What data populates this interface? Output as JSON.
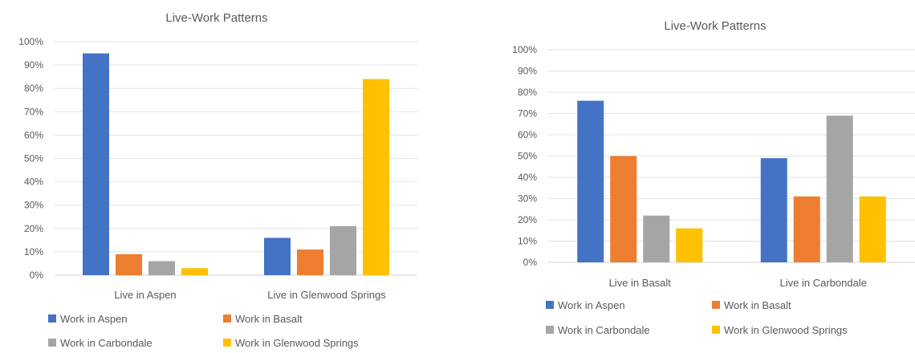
{
  "chart_data": [
    {
      "type": "bar",
      "title": "Live-Work Patterns",
      "categories": [
        "Live in Aspen",
        "Live in Glenwood Springs"
      ],
      "series": [
        {
          "name": "Work in Aspen",
          "color": "#4472C4",
          "values": [
            95,
            16
          ]
        },
        {
          "name": "Work in Basalt",
          "color": "#ED7D31",
          "values": [
            9,
            11
          ]
        },
        {
          "name": "Work in Carbondale",
          "color": "#A5A5A5",
          "values": [
            6,
            21
          ]
        },
        {
          "name": "Work in Glenwood Springs",
          "color": "#FFC000",
          "values": [
            3,
            84
          ]
        }
      ],
      "ylim": [
        0,
        100
      ],
      "yticks": [
        "0%",
        "10%",
        "20%",
        "30%",
        "40%",
        "50%",
        "60%",
        "70%",
        "80%",
        "90%",
        "100%"
      ],
      "grid": true,
      "legend": "bottom"
    },
    {
      "type": "bar",
      "title": "Live-Work Patterns",
      "categories": [
        "Live in Basalt",
        "Live in Carbondale"
      ],
      "series": [
        {
          "name": "Work in Aspen",
          "color": "#4472C4",
          "values": [
            76,
            49
          ]
        },
        {
          "name": "Work in Basalt",
          "color": "#ED7D31",
          "values": [
            50,
            31
          ]
        },
        {
          "name": "Work in Carbondale",
          "color": "#A5A5A5",
          "values": [
            22,
            69
          ]
        },
        {
          "name": "Work in Glenwood Springs",
          "color": "#FFC000",
          "values": [
            16,
            31
          ]
        }
      ],
      "ylim": [
        0,
        100
      ],
      "yticks": [
        "0%",
        "10%",
        "20%",
        "30%",
        "40%",
        "50%",
        "60%",
        "70%",
        "80%",
        "90%",
        "100%"
      ],
      "grid": true,
      "legend": "bottom"
    }
  ]
}
